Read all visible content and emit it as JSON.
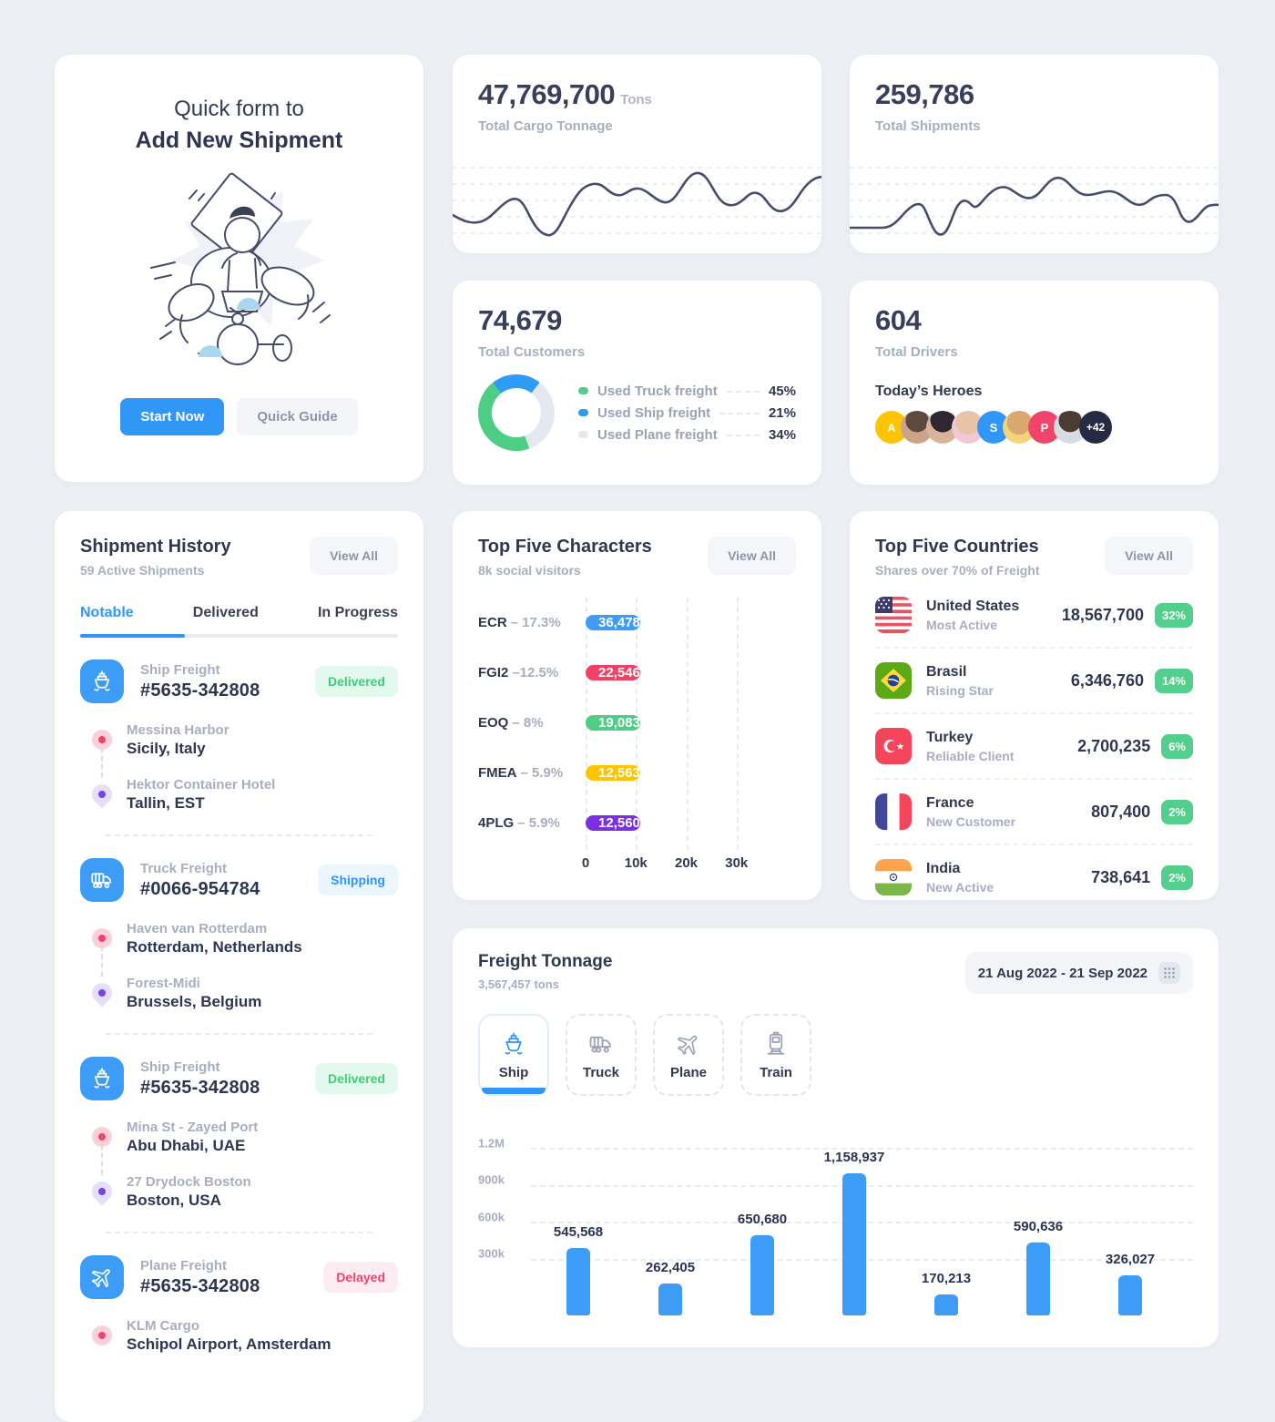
{
  "quick_form": {
    "title_line1": "Quick form to",
    "title_line2": "Add New Shipment",
    "start_button": "Start Now",
    "guide_button": "Quick Guide"
  },
  "cargo_card": {
    "value": "47,769,700",
    "unit": "Tons",
    "label": "Total Cargo Tonnage"
  },
  "shipments_card": {
    "value": "259,786",
    "label": "Total Shipments"
  },
  "customers_card": {
    "value": "74,679",
    "label": "Total Customers",
    "donut_from_deg": 160,
    "legend": [
      {
        "label": "Used Truck freight",
        "pct": "45%",
        "value": 45,
        "color": "#4ECE85"
      },
      {
        "label": "Used Ship freight",
        "pct": "21%",
        "value": 21,
        "color": "#2E9BF7"
      },
      {
        "label": "Used Plane freight",
        "pct": "34%",
        "value": 34,
        "color": "#E4E8F0"
      }
    ]
  },
  "drivers_card": {
    "value": "604",
    "label": "Total Drivers",
    "heroes_title": "Today’s Heroes",
    "avatars": [
      {
        "kind": "initial",
        "text": "A"
      },
      {
        "kind": "photo",
        "text": ""
      },
      {
        "kind": "photo",
        "text": ""
      },
      {
        "kind": "photo",
        "text": ""
      },
      {
        "kind": "initial",
        "text": "S"
      },
      {
        "kind": "photo",
        "text": ""
      },
      {
        "kind": "initial",
        "text": "P"
      },
      {
        "kind": "photo",
        "text": ""
      },
      {
        "kind": "more",
        "text": "+42"
      }
    ]
  },
  "shipment_history": {
    "title": "Shipment History",
    "subtitle": "59 Active Shipments",
    "view_all": "View All",
    "tabs": [
      "Notable",
      "Delivered",
      "In Progress"
    ],
    "active_tab": "Notable",
    "entries": [
      {
        "type": "Ship Freight",
        "id": "#5635-342808",
        "status": "Delivered",
        "status_type": "delivered",
        "icon": "ship",
        "from_name": "Messina Harbor",
        "from_place": "Sicily, Italy",
        "to_name": "Hektor Container Hotel",
        "to_place": "Tallin, EST"
      },
      {
        "type": "Truck Freight",
        "id": "#0066-954784",
        "status": "Shipping",
        "status_type": "shipping",
        "icon": "truck",
        "from_name": "Haven van Rotterdam",
        "from_place": "Rotterdam, Netherlands",
        "to_name": "Forest-Midi",
        "to_place": "Brussels, Belgium"
      },
      {
        "type": "Ship Freight",
        "id": "#5635-342808",
        "status": "Delivered",
        "status_type": "delivered",
        "icon": "ship",
        "from_name": "Mina St - Zayed Port",
        "from_place": "Abu Dhabi, UAE",
        "to_name": "27 Drydock Boston",
        "to_place": "Boston, USA"
      },
      {
        "type": "Plane Freight",
        "id": "#5635-342808",
        "status": "Delayed",
        "status_type": "delayed",
        "icon": "plane",
        "from_name": "KLM Cargo",
        "from_place": "Schipol Airport, Amsterdam",
        "to_name": "",
        "to_place": ""
      }
    ]
  },
  "top_characters": {
    "title": "Top Five Characters",
    "subtitle": "8k social visitors",
    "view_all": "View All",
    "axis_max": 40000,
    "rows": [
      {
        "name": "ECR",
        "pct": "– 17.3%",
        "value": 36478,
        "value_label": "36,478",
        "color": "#3D9DF6"
      },
      {
        "name": "FGI2",
        "pct": "–12.5%",
        "value": 22546,
        "value_label": "22,546",
        "color": "#EF4266"
      },
      {
        "name": "EOQ",
        "pct": "– 8%",
        "value": 19083,
        "value_label": "19,083",
        "color": "#4ECE85"
      },
      {
        "name": "FMEA",
        "pct": "– 5.9%",
        "value": 12563,
        "value_label": "12,563",
        "color": "#FFC400"
      },
      {
        "name": "4PLG",
        "pct": "– 5.9%",
        "value": 12560,
        "value_label": "12,560",
        "color": "#7B2FE3"
      }
    ],
    "xticks": [
      "0",
      "10k",
      "20k",
      "30k"
    ]
  },
  "top_countries": {
    "title": "Top Five Countries",
    "subtitle": "Shares over 70% of Freight",
    "view_all": "View All",
    "rows": [
      {
        "country": "United States",
        "tag": "Most Active",
        "value": "18,567,700",
        "share": "32%",
        "flag": "us"
      },
      {
        "country": "Brasil",
        "tag": "Rising Star",
        "value": "6,346,760",
        "share": "14%",
        "flag": "br"
      },
      {
        "country": "Turkey",
        "tag": "Reliable Client",
        "value": "2,700,235",
        "share": "6%",
        "flag": "tr"
      },
      {
        "country": "France",
        "tag": "New Customer",
        "value": "807,400",
        "share": "2%",
        "flag": "fr"
      },
      {
        "country": "India",
        "tag": "New Active",
        "value": "738,641",
        "share": "2%",
        "flag": "in"
      }
    ]
  },
  "freight_tonnage": {
    "title": "Freight Tonnage",
    "subtitle": "3,567,457 tons",
    "date_range": "21 Aug 2022 - 21 Sep 2022",
    "modes": [
      {
        "label": "Ship",
        "active": true
      },
      {
        "label": "Truck",
        "active": false
      },
      {
        "label": "Plane",
        "active": false
      },
      {
        "label": "Train",
        "active": false
      }
    ],
    "yticks": [
      "1.2M",
      "900k",
      "600k",
      "300k"
    ],
    "bars": [
      {
        "value": 545568,
        "label": "545,568"
      },
      {
        "value": 262405,
        "label": "262,405"
      },
      {
        "value": 650680,
        "label": "650,680"
      },
      {
        "value": 1158937,
        "label": "1,158,937"
      },
      {
        "value": 170213,
        "label": "170,213"
      },
      {
        "value": 590636,
        "label": "590,636"
      },
      {
        "value": 326027,
        "label": "326,027"
      }
    ]
  },
  "chart_data": [
    {
      "type": "line",
      "title": "Total Cargo Tonnage trend",
      "value": "47,769,700",
      "unit": "Tons",
      "axes_labeled": false,
      "grid": "dashed-horizontal",
      "values_estimated_normalized": [
        38,
        30,
        45,
        52,
        30,
        12,
        25,
        60,
        58,
        54,
        56,
        40,
        55,
        70,
        52,
        38,
        48,
        65,
        45,
        30,
        42,
        48,
        38,
        55,
        62,
        55,
        72,
        78
      ]
    },
    {
      "type": "line",
      "title": "Total Shipments trend",
      "value": "259,786",
      "axes_labeled": false,
      "grid": "dashed-horizontal",
      "values_estimated_normalized": [
        20,
        20,
        22,
        35,
        38,
        22,
        12,
        45,
        42,
        55,
        58,
        52,
        50,
        62,
        68,
        58,
        55,
        55,
        48,
        40,
        40,
        45,
        50,
        42,
        18,
        20,
        38,
        38
      ]
    },
    {
      "type": "pie",
      "title": "Total Customers freight usage",
      "total": "74,679",
      "labels": [
        "Used Truck freight",
        "Used Ship freight",
        "Used Plane freight"
      ],
      "values": [
        45,
        21,
        34
      ],
      "colors": [
        "#4ECE85",
        "#2E9BF7",
        "#E4E8F0"
      ],
      "style": "donut",
      "legend_position": "right"
    },
    {
      "type": "bar",
      "orientation": "horizontal",
      "title": "Top Five Characters",
      "subtitle": "8k social visitors",
      "categories": [
        "ECR",
        "FGI2",
        "EOQ",
        "FMEA",
        "4PLG"
      ],
      "values": [
        36478,
        22546,
        19083,
        12563,
        12560
      ],
      "category_pcts": [
        "17.3%",
        "12.5%",
        "8%",
        "5.9%",
        "5.9%"
      ],
      "colors": [
        "#3D9DF6",
        "#EF4266",
        "#4ECE85",
        "#FFC400",
        "#7B2FE3"
      ],
      "xticks": [
        "0",
        "10k",
        "20k",
        "30k"
      ],
      "xlim": [
        0,
        40000
      ],
      "grid": "dashed-vertical"
    },
    {
      "type": "bar",
      "orientation": "vertical",
      "title": "Freight Tonnage",
      "subtitle": "3,567,457 tons",
      "series_mode": "Ship",
      "date_range": "21 Aug 2022 - 21 Sep 2022",
      "values": [
        545568,
        262405,
        650680,
        1158937,
        170213,
        590636,
        326027
      ],
      "bar_color": "#3D9DF6",
      "yticks": [
        "1.2M",
        "900k",
        "600k",
        "300k"
      ],
      "ylim": [
        0,
        1200000
      ],
      "grid": "dashed-horizontal",
      "x_labels_visible": false
    }
  ]
}
